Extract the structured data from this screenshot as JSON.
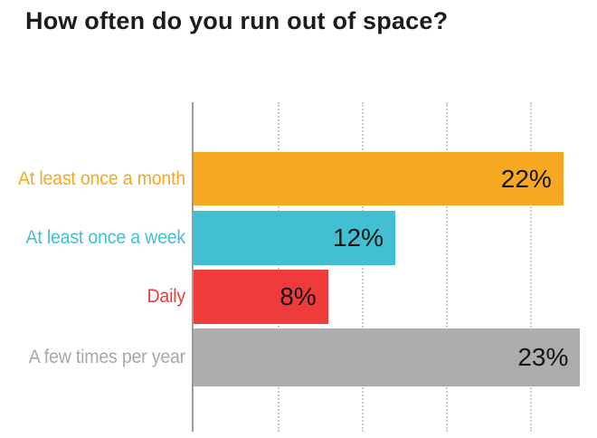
{
  "title": "How often do you run out of space?",
  "colors": {
    "background": "#ffffff",
    "title_text": "#1c1c1c",
    "axis_line": "#9b9b9b",
    "gridline": "#cbcbcb",
    "value_label_text": "#151515"
  },
  "chart_data": {
    "type": "bar",
    "orientation": "horizontal",
    "title": "How often do you run out of space?",
    "categories": [
      "At least once a month",
      "At least once a week",
      "Daily",
      "A few times per year"
    ],
    "values": [
      22,
      12,
      8,
      23
    ],
    "value_labels": [
      "22%",
      "12%",
      "8%",
      "23%"
    ],
    "bar_colors": [
      "#F6A820",
      "#43BFD2",
      "#EF3B3C",
      "#ADADAD"
    ],
    "category_label_colors": [
      "#F6A820",
      "#43BFD2",
      "#EF3B3C",
      "#A8A8A8"
    ],
    "xlabel": "",
    "ylabel": "",
    "xlim": [
      0,
      24
    ],
    "gridline_values": [
      5,
      10,
      15,
      20
    ],
    "grid_style": "dotted-vertical",
    "legend": "none",
    "value_labels_position": "inside-right"
  }
}
